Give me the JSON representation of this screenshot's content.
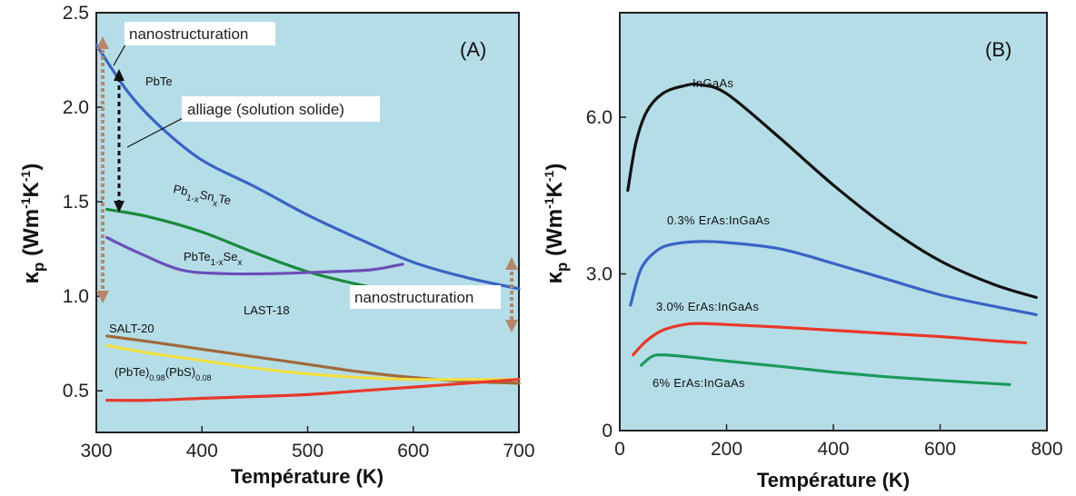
{
  "chart_data": [
    {
      "type": "line",
      "panel_label": "(A)",
      "xlabel": "Température (K)",
      "ylabel": "κp (Wm-1K-1)",
      "xlim": [
        300,
        700
      ],
      "ylim": [
        0.28,
        2.5
      ],
      "xticks": [
        300,
        400,
        500,
        600,
        700
      ],
      "yticks": [
        "0.5",
        "1.0",
        "1.5",
        "2.0",
        "2.5"
      ],
      "ytick_values": [
        0.5,
        1.0,
        1.5,
        2.0,
        2.5
      ],
      "series": [
        {
          "name": "PbTe",
          "color": "#3a63c4",
          "x": [
            300,
            330,
            360,
            400,
            450,
            500,
            550,
            600,
            650,
            700
          ],
          "y": [
            2.33,
            2.08,
            1.9,
            1.72,
            1.58,
            1.43,
            1.3,
            1.18,
            1.1,
            1.04
          ]
        },
        {
          "name": "Pb1-xSnxTe",
          "color": "#1a8a3c",
          "x": [
            310,
            350,
            400,
            450,
            500,
            550,
            580
          ],
          "y": [
            1.46,
            1.42,
            1.34,
            1.23,
            1.13,
            1.06,
            1.03
          ]
        },
        {
          "name": "PbTe1-xSex",
          "color": "#6a4fb8",
          "x": [
            310,
            340,
            380,
            420,
            470,
            520,
            560,
            590
          ],
          "y": [
            1.31,
            1.23,
            1.14,
            1.12,
            1.12,
            1.13,
            1.14,
            1.17
          ]
        },
        {
          "name": "LAST-18",
          "color": "#a0693a",
          "x": [
            310,
            350,
            400,
            450,
            500,
            550,
            600,
            650,
            700
          ],
          "y": [
            0.79,
            0.76,
            0.72,
            0.68,
            0.64,
            0.6,
            0.57,
            0.55,
            0.54
          ]
        },
        {
          "name": "SALT-20",
          "color": "#f2e040",
          "x": [
            310,
            350,
            400,
            450,
            500,
            550,
            600,
            650,
            700
          ],
          "y": [
            0.74,
            0.7,
            0.66,
            0.62,
            0.59,
            0.57,
            0.56,
            0.56,
            0.56
          ]
        },
        {
          "name": "(PbTe)0.98(PbS)0.08",
          "color": "#e8392a",
          "x": [
            310,
            350,
            400,
            450,
            500,
            550,
            600,
            650,
            700
          ],
          "y": [
            0.45,
            0.45,
            0.46,
            0.47,
            0.48,
            0.5,
            0.52,
            0.54,
            0.56
          ]
        }
      ],
      "labels": {
        "pbte": "PbTe",
        "pbsnte_main": "Pb",
        "pbsnte_sub1": "1-x",
        "pbsnte_mid": "Sn",
        "pbsnte_sub2": "x",
        "pbsnte_end": "Te",
        "pbtese_main": "PbTe",
        "pbtese_sub1": "1-x",
        "pbtese_mid": "Se",
        "pbtese_sub2": "x",
        "last": "LAST-18",
        "salt": "SALT-20",
        "pbs_a": "(PbTe)",
        "pbs_sub1": "0.98",
        "pbs_b": "(PbS)",
        "pbs_sub2": "0.08"
      },
      "annotations": [
        "nanostructuration",
        "alliage (solution solide)",
        "nanostructuration"
      ]
    },
    {
      "type": "line",
      "panel_label": "(B)",
      "xlabel": "Température (K)",
      "ylabel": "κp (Wm-1K-1)",
      "xlim": [
        0,
        800
      ],
      "ylim": [
        0,
        8
      ],
      "xticks": [
        0,
        200,
        400,
        600,
        800
      ],
      "yticks": [
        "0",
        "3.0",
        "6.0"
      ],
      "ytick_values": [
        0,
        3.0,
        6.0
      ],
      "series": [
        {
          "name": "InGaAs",
          "color": "#111111",
          "x": [
            15,
            30,
            50,
            80,
            120,
            150,
            200,
            300,
            400,
            500,
            600,
            700,
            780
          ],
          "y": [
            4.6,
            5.5,
            6.1,
            6.45,
            6.6,
            6.62,
            6.45,
            5.6,
            4.7,
            3.9,
            3.25,
            2.8,
            2.55
          ]
        },
        {
          "name": "0.3% ErAs:InGaAs",
          "color": "#3a63c4",
          "x": [
            20,
            40,
            70,
            100,
            150,
            200,
            300,
            400,
            500,
            600,
            700,
            780
          ],
          "y": [
            2.4,
            3.1,
            3.45,
            3.57,
            3.62,
            3.6,
            3.48,
            3.2,
            2.9,
            2.6,
            2.38,
            2.22
          ]
        },
        {
          "name": "3.0% ErAs:InGaAs",
          "color": "#e8392a",
          "x": [
            25,
            50,
            80,
            120,
            150,
            200,
            300,
            400,
            500,
            600,
            700,
            760
          ],
          "y": [
            1.45,
            1.72,
            1.92,
            2.03,
            2.05,
            2.03,
            1.98,
            1.92,
            1.86,
            1.8,
            1.72,
            1.68
          ]
        },
        {
          "name": "6% ErAs:InGaAs",
          "color": "#1a9a5c",
          "x": [
            40,
            60,
            80,
            120,
            200,
            300,
            400,
            500,
            600,
            700,
            730
          ],
          "y": [
            1.25,
            1.42,
            1.45,
            1.42,
            1.33,
            1.23,
            1.12,
            1.03,
            0.96,
            0.9,
            0.88
          ]
        }
      ]
    }
  ]
}
